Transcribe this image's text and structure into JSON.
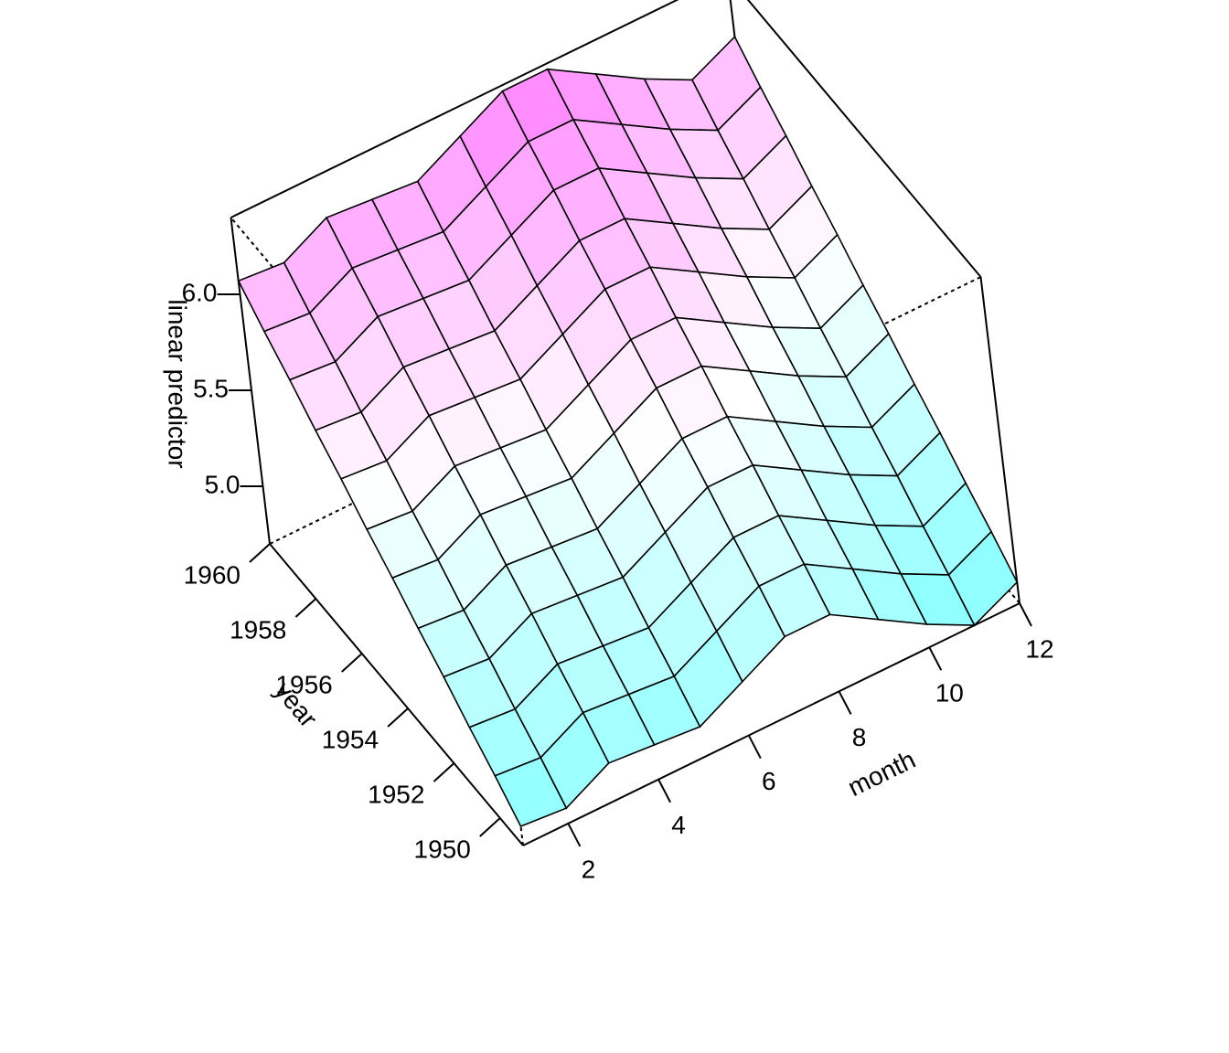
{
  "chart_data": {
    "type": "surface",
    "xlabel": "month",
    "ylabel": "year",
    "zlabel": "linear predictor",
    "x": [
      1,
      2,
      3,
      4,
      5,
      6,
      7,
      8,
      9,
      10,
      11,
      12
    ],
    "y": [
      1949,
      1950,
      1951,
      1952,
      1953,
      1954,
      1955,
      1956,
      1957,
      1958,
      1959,
      1960
    ],
    "z": [
      [
        4.8,
        4.78,
        4.9,
        4.88,
        4.86,
        4.98,
        5.1,
        5.1,
        4.96,
        4.82,
        4.7,
        4.81
      ],
      [
        4.92,
        4.9,
        5.02,
        5.0,
        4.98,
        5.1,
        5.22,
        5.22,
        5.08,
        4.94,
        4.82,
        4.93
      ],
      [
        5.03,
        5.01,
        5.13,
        5.11,
        5.09,
        5.21,
        5.33,
        5.33,
        5.19,
        5.05,
        4.93,
        5.04
      ],
      [
        5.15,
        5.13,
        5.25,
        5.23,
        5.21,
        5.33,
        5.45,
        5.45,
        5.31,
        5.17,
        5.05,
        5.16
      ],
      [
        5.26,
        5.24,
        5.36,
        5.34,
        5.32,
        5.44,
        5.56,
        5.56,
        5.42,
        5.28,
        5.16,
        5.27
      ],
      [
        5.38,
        5.36,
        5.48,
        5.46,
        5.44,
        5.56,
        5.68,
        5.68,
        5.54,
        5.4,
        5.28,
        5.39
      ],
      [
        5.49,
        5.47,
        5.59,
        5.57,
        5.55,
        5.67,
        5.79,
        5.79,
        5.65,
        5.51,
        5.39,
        5.5
      ],
      [
        5.61,
        5.59,
        5.71,
        5.69,
        5.67,
        5.79,
        5.91,
        5.91,
        5.77,
        5.63,
        5.51,
        5.62
      ],
      [
        5.72,
        5.7,
        5.82,
        5.8,
        5.78,
        5.9,
        6.02,
        6.02,
        5.88,
        5.74,
        5.62,
        5.73
      ],
      [
        5.84,
        5.82,
        5.94,
        5.92,
        5.9,
        6.02,
        6.14,
        6.14,
        6.0,
        5.86,
        5.74,
        5.85
      ],
      [
        5.95,
        5.93,
        6.05,
        6.03,
        6.01,
        6.13,
        6.25,
        6.25,
        6.11,
        5.97,
        5.85,
        5.96
      ],
      [
        6.07,
        6.05,
        6.17,
        6.15,
        6.13,
        6.25,
        6.37,
        6.37,
        6.23,
        6.09,
        5.97,
        6.08
      ]
    ],
    "xlim": [
      1,
      12
    ],
    "xticks": [
      2,
      4,
      6,
      8,
      10,
      12
    ],
    "ylim": [
      1949,
      1960
    ],
    "yticks": [
      1950,
      1952,
      1954,
      1956,
      1958,
      1960
    ],
    "zlim": [
      4.7,
      6.4
    ],
    "zticks": [
      {
        "value": 5,
        "label": "5.0"
      },
      {
        "value": 5.5,
        "label": "5.5"
      },
      {
        "value": 6,
        "label": "6.0"
      }
    ],
    "low_color": "#80ffff",
    "mid_color": "#ffffff",
    "high_color": "#ff80ff"
  }
}
